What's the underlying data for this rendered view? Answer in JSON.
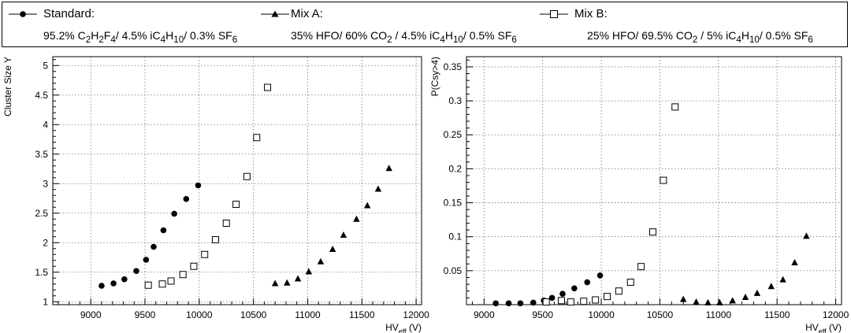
{
  "legend": [
    {
      "name": "Standard:",
      "marker": "circle",
      "composition": "95.2% C<sub>2</sub>H<sub>2</sub>F<sub>4</sub>/ 4.5% iC<sub>4</sub>H<sub>10</sub>/ 0.3% SF<sub>6</sub>"
    },
    {
      "name": "Mix A:",
      "marker": "triangle",
      "composition": "35% HFO/ 60% CO<sub>2</sub> / 4.5% iC<sub>4</sub>H<sub>10</sub>/ 0.5% SF<sub>6</sub>"
    },
    {
      "name": "Mix B:",
      "marker": "open-square",
      "composition": "25% HFO/ 69.5% CO<sub>2</sub> / 5% iC<sub>4</sub>H<sub>10</sub>/ 0.5% SF<sub>6</sub>"
    }
  ],
  "chart_data": [
    {
      "type": "scatter",
      "xlabel": "HV_eff (V)",
      "ylabel": "Cluster Size Y",
      "xlim": [
        8650,
        12050
      ],
      "ylim": [
        0.95,
        5.15
      ],
      "xticks": [
        9000,
        9500,
        10000,
        10500,
        11000,
        11500,
        12000
      ],
      "yticks": [
        1,
        1.5,
        2,
        2.5,
        3,
        3.5,
        4,
        4.5,
        5
      ],
      "ytick_labels": [
        "1",
        "1.5",
        "2",
        "2.5",
        "3",
        "3.5",
        "4",
        "4.5",
        "5"
      ],
      "grid": true,
      "series": [
        {
          "name": "Standard:",
          "marker": "circle",
          "x": [
            9100,
            9210,
            9310,
            9420,
            9510,
            9580,
            9670,
            9770,
            9880,
            9990
          ],
          "y": [
            1.27,
            1.31,
            1.38,
            1.52,
            1.71,
            1.93,
            2.21,
            2.49,
            2.74,
            2.97
          ]
        },
        {
          "name": "Mix A:",
          "marker": "triangle",
          "x": [
            10700,
            10810,
            10910,
            11010,
            11120,
            11230,
            11330,
            11450,
            11550,
            11650,
            11750
          ],
          "y": [
            1.31,
            1.32,
            1.39,
            1.51,
            1.68,
            1.89,
            2.13,
            2.4,
            2.63,
            2.91,
            3.26
          ]
        },
        {
          "name": "Mix B:",
          "marker": "open-square",
          "x": [
            9530,
            9660,
            9740,
            9850,
            9950,
            10050,
            10150,
            10250,
            10340,
            10440,
            10530,
            10630
          ],
          "y": [
            1.28,
            1.3,
            1.35,
            1.46,
            1.6,
            1.8,
            2.05,
            2.33,
            2.65,
            3.12,
            3.78,
            4.63
          ]
        }
      ]
    },
    {
      "type": "scatter",
      "xlabel": "HV_eff (V)",
      "ylabel": "P(Csy>4)",
      "xlim": [
        8850,
        12050
      ],
      "ylim": [
        0,
        0.365
      ],
      "xticks": [
        9000,
        9500,
        10000,
        10500,
        11000,
        11500,
        12000
      ],
      "yticks": [
        0.05,
        0.1,
        0.15,
        0.2,
        0.25,
        0.3,
        0.35
      ],
      "ytick_labels": [
        "0.05",
        "0.1",
        "0.15",
        "0.2",
        "0.25",
        "0.3",
        "0.35"
      ],
      "grid": true,
      "series": [
        {
          "name": "Standard:",
          "marker": "circle",
          "x": [
            9100,
            9210,
            9310,
            9420,
            9510,
            9580,
            9670,
            9770,
            9880,
            9990
          ],
          "y": [
            0.002,
            0.002,
            0.002,
            0.003,
            0.006,
            0.01,
            0.016,
            0.024,
            0.033,
            0.043
          ]
        },
        {
          "name": "Mix A:",
          "marker": "triangle",
          "x": [
            10700,
            10810,
            10910,
            11010,
            11120,
            11230,
            11330,
            11450,
            11550,
            11650,
            11750
          ],
          "y": [
            0.008,
            0.004,
            0.003,
            0.003,
            0.006,
            0.011,
            0.017,
            0.027,
            0.037,
            0.062,
            0.101
          ]
        },
        {
          "name": "Mix B:",
          "marker": "open-square",
          "x": [
            9530,
            9660,
            9740,
            9850,
            9950,
            10050,
            10150,
            10250,
            10340,
            10440,
            10530,
            10630
          ],
          "y": [
            0.004,
            0.006,
            0.004,
            0.005,
            0.007,
            0.012,
            0.02,
            0.033,
            0.056,
            0.107,
            0.183,
            0.291
          ]
        }
      ]
    }
  ]
}
